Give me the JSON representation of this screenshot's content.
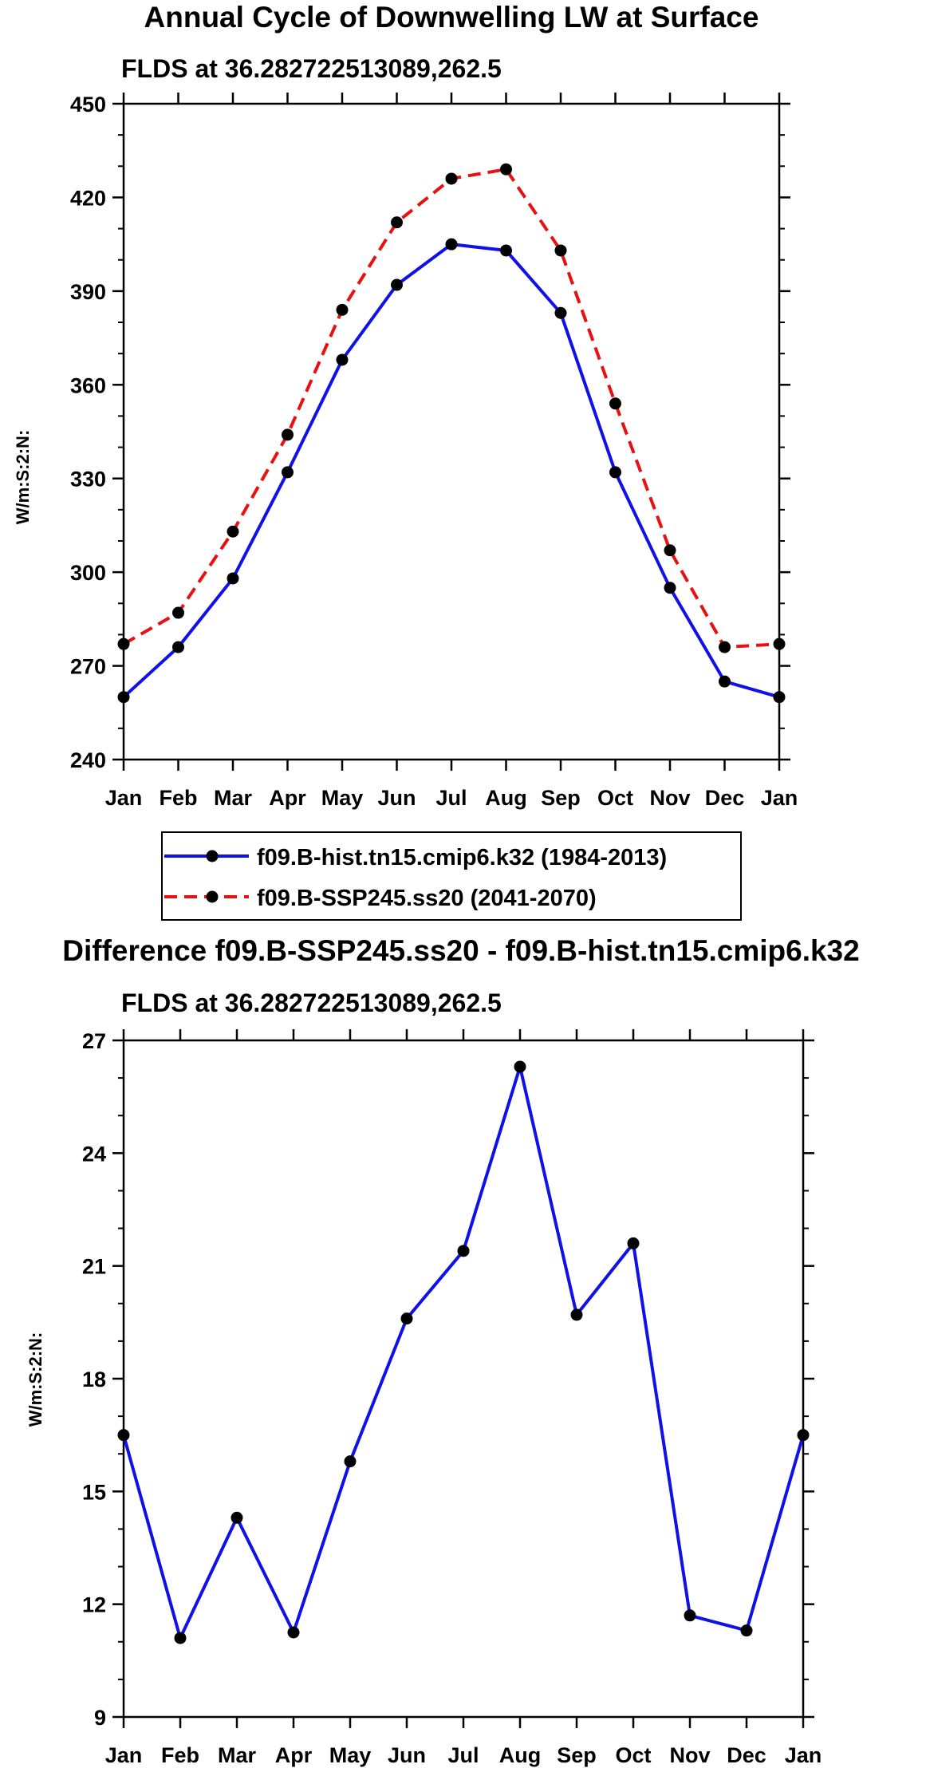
{
  "chart_data": [
    {
      "type": "line",
      "title": "Annual Cycle of Downwelling LW at Surface",
      "subtitle": "FLDS at 36.282722513089,262.5",
      "xlabel": "",
      "ylabel": "W/m:S:2:N:",
      "categories": [
        "Jan",
        "Feb",
        "Mar",
        "Apr",
        "May",
        "Jun",
        "Jul",
        "Aug",
        "Sep",
        "Oct",
        "Nov",
        "Dec",
        "Jan"
      ],
      "ylim": [
        240,
        450
      ],
      "yticks": [
        240,
        270,
        300,
        330,
        360,
        390,
        420,
        450
      ],
      "series": [
        {
          "name": "f09.B-hist.tn15.cmip6.k32 (1984-2013)",
          "color": "#1010e8",
          "dash": "solid",
          "values": [
            260,
            276,
            298,
            332,
            368,
            392,
            405,
            403,
            383,
            332,
            295,
            265,
            260
          ]
        },
        {
          "name": "f09.B-SSP245.ss20 (2041-2070)",
          "color": "#e81010",
          "dash": "dashed",
          "values": [
            277,
            287,
            313,
            344,
            384,
            412,
            426,
            429,
            403,
            354,
            307,
            276,
            277
          ]
        }
      ]
    },
    {
      "type": "line",
      "title": "Difference f09.B-SSP245.ss20 - f09.B-hist.tn15.cmip6.k32",
      "subtitle": "FLDS at 36.282722513089,262.5",
      "xlabel": "",
      "ylabel": "W/m:S:2:N:",
      "categories": [
        "Jan",
        "Feb",
        "Mar",
        "Apr",
        "May",
        "Jun",
        "Jul",
        "Aug",
        "Sep",
        "Oct",
        "Nov",
        "Dec",
        "Jan"
      ],
      "ylim": [
        9,
        27
      ],
      "yticks": [
        9,
        12,
        15,
        18,
        21,
        24,
        27
      ],
      "series": [
        {
          "name": "Difference",
          "color": "#1010e8",
          "dash": "solid",
          "values": [
            16.5,
            11.1,
            14.3,
            11.25,
            15.8,
            19.6,
            21.4,
            26.3,
            19.7,
            21.6,
            11.7,
            11.3,
            16.5
          ]
        }
      ]
    }
  ]
}
